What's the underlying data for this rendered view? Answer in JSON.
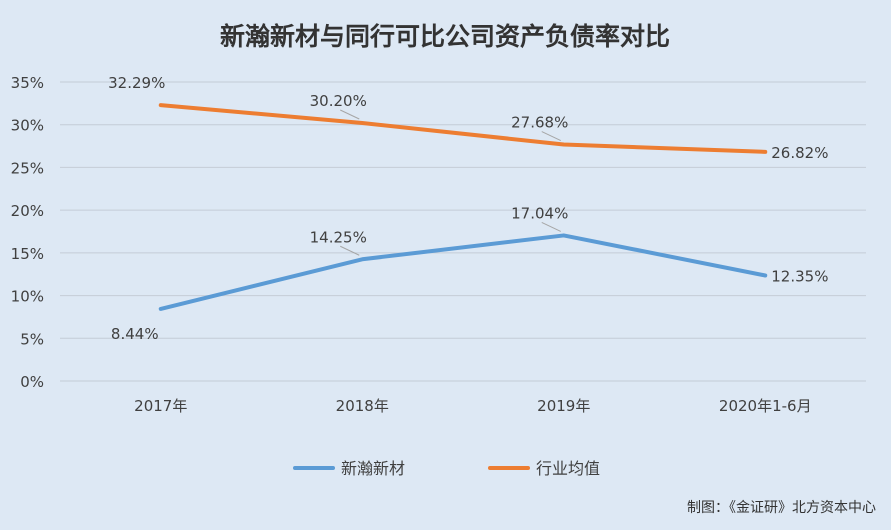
{
  "chart_data": {
    "type": "line",
    "title": "新瀚新材与同行可比公司资产负债率对比",
    "categories": [
      "2017年",
      "2018年",
      "2019年",
      "2020年1-6月"
    ],
    "series": [
      {
        "name": "新瀚新材",
        "values": [
          8.44,
          14.25,
          17.04,
          12.35
        ],
        "labels": [
          "8.44%",
          "14.25%",
          "17.04%",
          "12.35%"
        ],
        "color": "#5b9bd5"
      },
      {
        "name": "行业均值",
        "values": [
          32.29,
          30.2,
          27.68,
          26.82
        ],
        "labels": [
          "32.29%",
          "30.20%",
          "27.68%",
          "26.82%"
        ],
        "color": "#ed7d31"
      }
    ],
    "ylim": [
      0,
      35
    ],
    "yticks": [
      0,
      5,
      10,
      15,
      20,
      25,
      30,
      35
    ],
    "ytick_labels": [
      "0%",
      "5%",
      "10%",
      "15%",
      "20%",
      "25%",
      "30%",
      "35%"
    ],
    "grid": true,
    "legend_position": "bottom-center",
    "source_note": "制图：《金证研》北方资本中心"
  }
}
